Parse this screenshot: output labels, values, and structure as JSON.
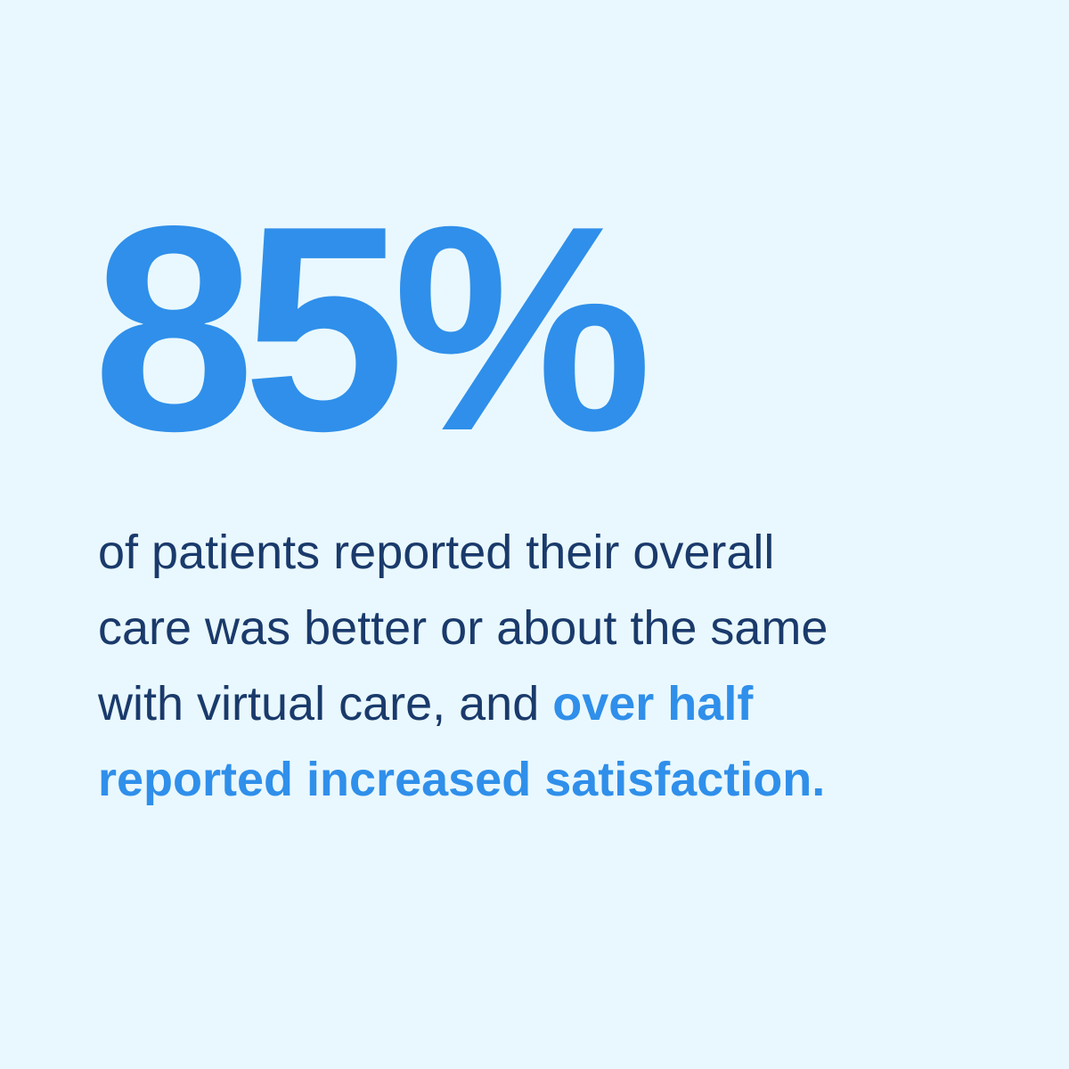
{
  "statistic": "85%",
  "body": {
    "lines": [
      [
        {
          "text": "of patients reported their overall",
          "highlight": false
        }
      ],
      [
        {
          "text": "care was better or about the same",
          "highlight": false
        }
      ],
      [
        {
          "text": "with virtual care, and ",
          "highlight": false
        },
        {
          "text": "over half",
          "highlight": true
        }
      ],
      [
        {
          "text": "reported increased satisfaction.",
          "highlight": true
        }
      ]
    ]
  }
}
